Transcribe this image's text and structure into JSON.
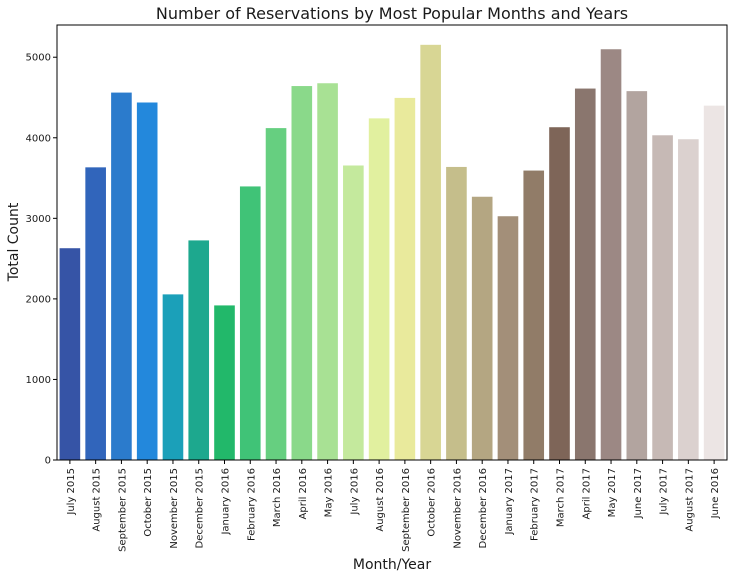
{
  "chart_data": {
    "type": "bar",
    "title": "Number of Reservations by Most Popular Months and Years",
    "xlabel": "Month/Year",
    "ylabel": "Total Count",
    "ylim": [
      0,
      5400
    ],
    "yticks": [
      0,
      1000,
      2000,
      3000,
      4000,
      5000
    ],
    "grid": false,
    "categories": [
      "July  2015",
      "August  2015",
      "September  2015",
      "October  2015",
      "November  2015",
      "December  2015",
      "January  2016",
      "February  2016",
      "March  2016",
      "April  2016",
      "May  2016",
      "July  2016",
      "August  2016",
      "September  2016",
      "October  2016",
      "November  2016",
      "December  2016",
      "January  2017",
      "February  2017",
      "March  2017",
      "April  2017",
      "May  2017",
      "June  2017",
      "July  2017",
      "August  2017",
      "June  2016"
    ],
    "values": [
      2629,
      3633,
      4561,
      4438,
      2056,
      2726,
      1919,
      3396,
      4120,
      4642,
      4677,
      3656,
      4241,
      4495,
      5154,
      3638,
      3268,
      3026,
      3593,
      4131,
      4611,
      5099,
      4579,
      4031,
      3982,
      4399
    ],
    "colors": [
      "#3654a6",
      "#3165bb",
      "#2b7bcc",
      "#2388dc",
      "#1ba0b9",
      "#1da88e",
      "#22b86a",
      "#40c377",
      "#66cf80",
      "#8ad98a",
      "#a8e194",
      "#c4e99d",
      "#e1f09f",
      "#e9ea9c",
      "#d8d694",
      "#c5be8b",
      "#b4a682",
      "#a38f79",
      "#917c68",
      "#7e6558",
      "#8a766e",
      "#9c8884",
      "#b2a49f",
      "#c6b9b5",
      "#dbd1cf",
      "#ece5e4"
    ]
  }
}
